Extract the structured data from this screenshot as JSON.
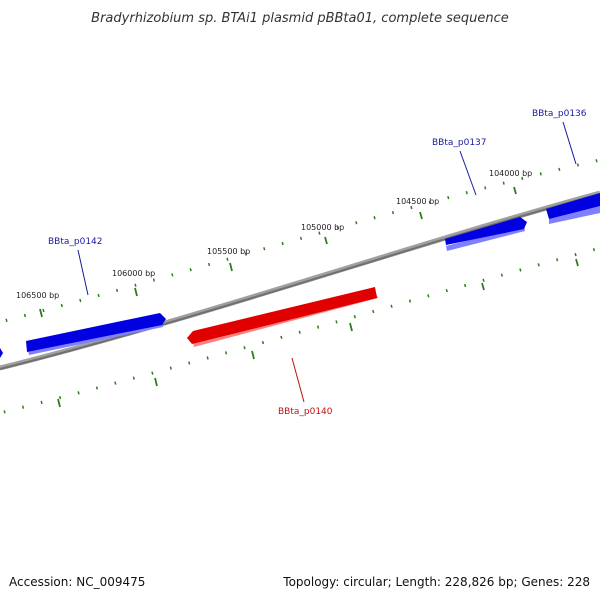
{
  "title": "Bradyrhizobium sp. BTAi1 plasmid pBBta01, complete sequence",
  "footer": {
    "accession": "Accession: NC_009475",
    "summary": "Topology: circular; Length: 228,826 bp; Genes: 228"
  },
  "colors": {
    "backbone": "#808080",
    "ticks": "#2e7d1e",
    "forward_gene": "#0000e0",
    "reverse_gene": "#e00000",
    "forward_label": "#1a1aa0",
    "reverse_label": "#c01010"
  },
  "ruler": {
    "labels": [
      "104000 bp",
      "104500 bp",
      "105000 bp",
      "105500 bp",
      "106000 bp",
      "106500 bp"
    ]
  },
  "genes": [
    {
      "name": "BBta_p0136",
      "strand": "forward"
    },
    {
      "name": "BBta_p0137",
      "strand": "forward"
    },
    {
      "name": "BBta_p0140",
      "strand": "reverse"
    },
    {
      "name": "BBta_p0142",
      "strand": "forward"
    }
  ]
}
